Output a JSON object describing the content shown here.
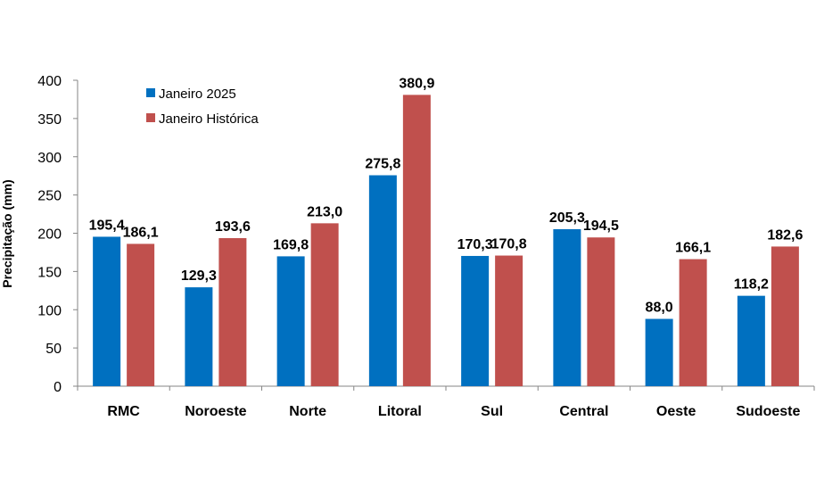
{
  "chart_data": {
    "type": "bar",
    "title": "",
    "xlabel": "",
    "ylabel": "Precipitação (mm)",
    "ylim": [
      0,
      400
    ],
    "yticks": [
      0,
      50,
      100,
      150,
      200,
      250,
      300,
      350,
      400
    ],
    "grid": false,
    "legend_position": "top-left",
    "categories": [
      "RMC",
      "Noroeste",
      "Norte",
      "Litoral",
      "Sul",
      "Central",
      "Oeste",
      "Sudoeste"
    ],
    "series": [
      {
        "name": "Janeiro 2025",
        "color": "#0070c0",
        "values": [
          195.4,
          129.3,
          169.8,
          275.8,
          170.3,
          205.3,
          88.0,
          118.2
        ],
        "labels": [
          "195,4",
          "129,3",
          "169,8",
          "275,8",
          "170,3",
          "205,3",
          "88,0",
          "118,2"
        ]
      },
      {
        "name": "Janeiro Histórica",
        "color": "#c0504d",
        "values": [
          186.1,
          193.6,
          213.0,
          380.9,
          170.8,
          194.5,
          166.1,
          182.6
        ],
        "labels": [
          "186,1",
          "193,6",
          "213,0",
          "380,9",
          "170,8",
          "194,5",
          "166,1",
          "182,6"
        ]
      }
    ]
  }
}
